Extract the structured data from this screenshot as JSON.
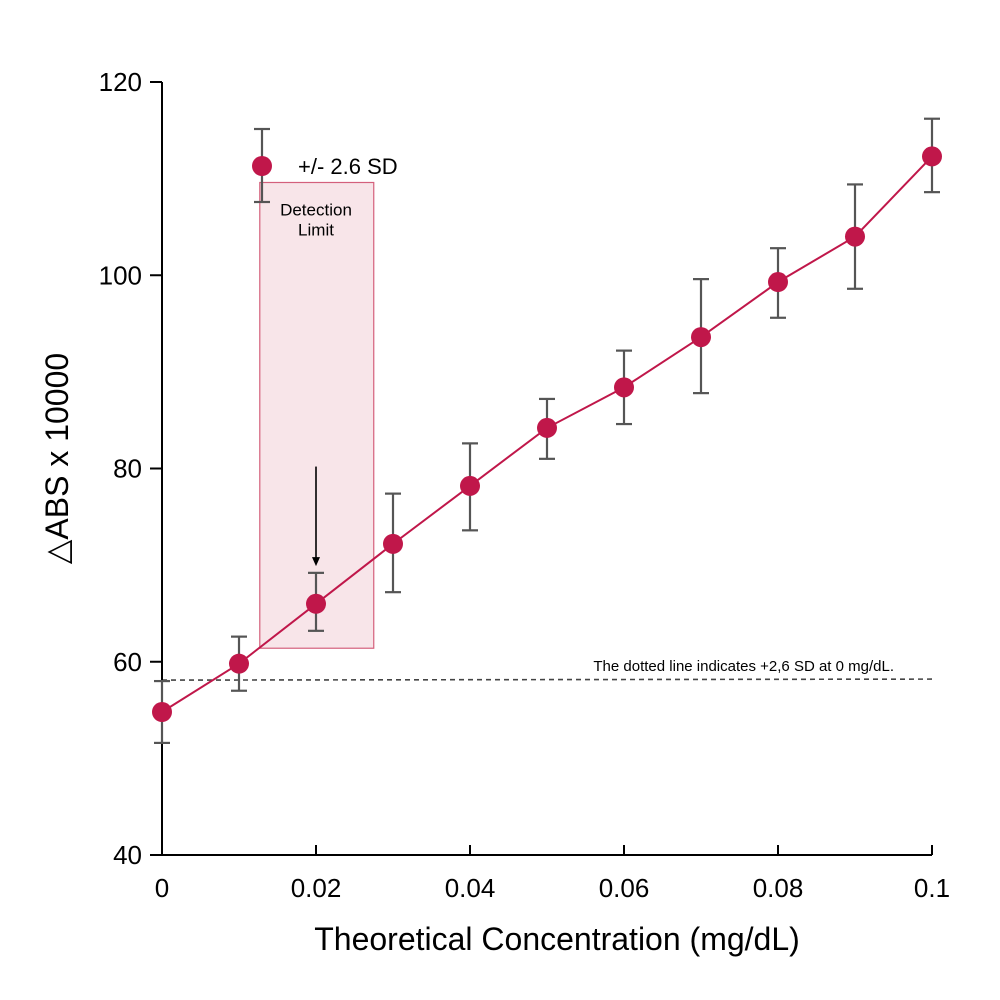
{
  "chart_data": {
    "type": "line",
    "title": "",
    "xlabel": "Theoretical Concentration (mg/dL)",
    "ylabel": "△ABS x 10000",
    "xlim": [
      0,
      0.1
    ],
    "ylim": [
      40,
      120
    ],
    "x_ticks": [
      {
        "value": 0,
        "label": "0"
      },
      {
        "value": 0.02,
        "label": "0.02"
      },
      {
        "value": 0.04,
        "label": "0.04"
      },
      {
        "value": 0.06,
        "label": "0.06"
      },
      {
        "value": 0.08,
        "label": "0.08"
      },
      {
        "value": 0.1,
        "label": "0.1"
      }
    ],
    "y_ticks": [
      {
        "value": 40,
        "label": "40"
      },
      {
        "value": 60,
        "label": "60"
      },
      {
        "value": 80,
        "label": "80"
      },
      {
        "value": 100,
        "label": "100"
      },
      {
        "value": 120,
        "label": "120"
      }
    ],
    "grid": false,
    "legend_position": "top-left",
    "series": [
      {
        "name": "+/- 2.6 SD",
        "color": "#c0174a",
        "x": [
          0,
          0.01,
          0.02,
          0.03,
          0.04,
          0.05,
          0.06,
          0.07,
          0.08,
          0.09,
          0.1
        ],
        "y": [
          54.8,
          59.8,
          66.0,
          72.2,
          78.2,
          84.2,
          88.4,
          93.6,
          99.3,
          104.0,
          112.3
        ],
        "err_low": [
          51.6,
          57.0,
          63.2,
          67.2,
          73.6,
          81.0,
          84.6,
          87.8,
          95.6,
          98.6,
          108.6
        ],
        "err_high": [
          58.0,
          62.6,
          69.2,
          77.4,
          82.6,
          87.2,
          92.2,
          99.6,
          102.8,
          109.4,
          116.2
        ]
      }
    ],
    "reference_line": {
      "y": 58.1,
      "label": "The dotted line indicates +2,6 SD at 0 mg/dL."
    },
    "annotation": {
      "text_line1": "Detection",
      "text_line2": "Limit",
      "x": 0.02,
      "x_range": [
        0.0127,
        0.0275
      ],
      "y_range": [
        61.4,
        109.6
      ],
      "arrow_from_y": 80.2,
      "arrow_to_y": 69.9
    }
  }
}
